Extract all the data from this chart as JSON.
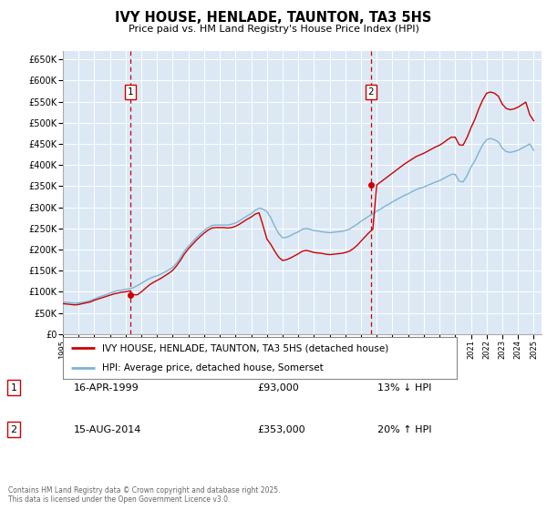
{
  "title": "IVY HOUSE, HENLADE, TAUNTON, TA3 5HS",
  "subtitle": "Price paid vs. HM Land Registry's House Price Index (HPI)",
  "background_color": "#ffffff",
  "plot_background_color": "#dce9f5",
  "grid_color": "#ffffff",
  "legend_label_red": "IVY HOUSE, HENLADE, TAUNTON, TA3 5HS (detached house)",
  "legend_label_blue": "HPI: Average price, detached house, Somerset",
  "annotation_footer": "Contains HM Land Registry data © Crown copyright and database right 2025.\nThis data is licensed under the Open Government Licence v3.0.",
  "sale1_date": "16-APR-1999",
  "sale1_price": "£93,000",
  "sale1_hpi": "13% ↓ HPI",
  "sale1_year": 1999.29,
  "sale1_value": 93000,
  "sale2_date": "15-AUG-2014",
  "sale2_price": "£353,000",
  "sale2_hpi": "20% ↑ HPI",
  "sale2_year": 2014.62,
  "sale2_value": 353000,
  "ylim": [
    0,
    670000
  ],
  "xlim_start": 1995.0,
  "xlim_end": 2025.5,
  "red_color": "#cc0000",
  "blue_color": "#7fb3d3",
  "hpi_data_x": [
    1995.0,
    1995.25,
    1995.5,
    1995.75,
    1996.0,
    1996.25,
    1996.5,
    1996.75,
    1997.0,
    1997.25,
    1997.5,
    1997.75,
    1998.0,
    1998.25,
    1998.5,
    1998.75,
    1999.0,
    1999.25,
    1999.5,
    1999.75,
    2000.0,
    2000.25,
    2000.5,
    2000.75,
    2001.0,
    2001.25,
    2001.5,
    2001.75,
    2002.0,
    2002.25,
    2002.5,
    2002.75,
    2003.0,
    2003.25,
    2003.5,
    2003.75,
    2004.0,
    2004.25,
    2004.5,
    2004.75,
    2005.0,
    2005.25,
    2005.5,
    2005.75,
    2006.0,
    2006.25,
    2006.5,
    2006.75,
    2007.0,
    2007.25,
    2007.5,
    2007.75,
    2008.0,
    2008.25,
    2008.5,
    2008.75,
    2009.0,
    2009.25,
    2009.5,
    2009.75,
    2010.0,
    2010.25,
    2010.5,
    2010.75,
    2011.0,
    2011.25,
    2011.5,
    2011.75,
    2012.0,
    2012.25,
    2012.5,
    2012.75,
    2013.0,
    2013.25,
    2013.5,
    2013.75,
    2014.0,
    2014.25,
    2014.5,
    2014.75,
    2015.0,
    2015.25,
    2015.5,
    2015.75,
    2016.0,
    2016.25,
    2016.5,
    2016.75,
    2017.0,
    2017.25,
    2017.5,
    2017.75,
    2018.0,
    2018.25,
    2018.5,
    2018.75,
    2019.0,
    2019.25,
    2019.5,
    2019.75,
    2020.0,
    2020.25,
    2020.5,
    2020.75,
    2021.0,
    2021.25,
    2021.5,
    2021.75,
    2022.0,
    2022.25,
    2022.5,
    2022.75,
    2023.0,
    2023.25,
    2023.5,
    2023.75,
    2024.0,
    2024.25,
    2024.5,
    2024.75,
    2025.0
  ],
  "hpi_data_y": [
    76000,
    75000,
    74000,
    73000,
    74000,
    75000,
    77000,
    79000,
    83000,
    87000,
    90000,
    93000,
    97000,
    100000,
    103000,
    104000,
    106000,
    107000,
    110000,
    115000,
    120000,
    126000,
    131000,
    135000,
    138000,
    142000,
    147000,
    152000,
    158000,
    168000,
    182000,
    197000,
    208000,
    218000,
    228000,
    237000,
    245000,
    252000,
    257000,
    258000,
    258000,
    258000,
    258000,
    260000,
    263000,
    268000,
    274000,
    280000,
    285000,
    293000,
    298000,
    296000,
    290000,
    275000,
    255000,
    238000,
    228000,
    229000,
    233000,
    238000,
    242000,
    248000,
    250000,
    248000,
    245000,
    244000,
    242000,
    241000,
    240000,
    241000,
    242000,
    243000,
    245000,
    248000,
    254000,
    260000,
    267000,
    273000,
    279000,
    285000,
    291000,
    296000,
    302000,
    307000,
    313000,
    318000,
    323000,
    328000,
    332000,
    337000,
    342000,
    345000,
    348000,
    352000,
    356000,
    360000,
    363000,
    368000,
    373000,
    378000,
    378000,
    362000,
    360000,
    375000,
    395000,
    410000,
    430000,
    448000,
    460000,
    463000,
    460000,
    455000,
    440000,
    432000,
    430000,
    432000,
    435000,
    440000,
    445000,
    450000,
    435000
  ],
  "red_data_x": [
    1995.0,
    1995.25,
    1995.5,
    1995.75,
    1996.0,
    1996.25,
    1996.5,
    1996.75,
    1997.0,
    1997.25,
    1997.5,
    1997.75,
    1998.0,
    1998.25,
    1998.5,
    1998.75,
    1999.0,
    1999.25,
    1999.5,
    1999.75,
    2000.0,
    2000.25,
    2000.5,
    2000.75,
    2001.0,
    2001.25,
    2001.5,
    2001.75,
    2002.0,
    2002.25,
    2002.5,
    2002.75,
    2003.0,
    2003.25,
    2003.5,
    2003.75,
    2004.0,
    2004.25,
    2004.5,
    2004.75,
    2005.0,
    2005.25,
    2005.5,
    2005.75,
    2006.0,
    2006.25,
    2006.5,
    2006.75,
    2007.0,
    2007.25,
    2007.5,
    2007.75,
    2008.0,
    2008.25,
    2008.5,
    2008.75,
    2009.0,
    2009.25,
    2009.5,
    2009.75,
    2010.0,
    2010.25,
    2010.5,
    2010.75,
    2011.0,
    2011.25,
    2011.5,
    2011.75,
    2012.0,
    2012.25,
    2012.5,
    2012.75,
    2013.0,
    2013.25,
    2013.5,
    2013.75,
    2014.0,
    2014.25,
    2014.5,
    2014.75,
    2015.0,
    2015.25,
    2015.5,
    2015.75,
    2016.0,
    2016.25,
    2016.5,
    2016.75,
    2017.0,
    2017.25,
    2017.5,
    2017.75,
    2018.0,
    2018.25,
    2018.5,
    2018.75,
    2019.0,
    2019.25,
    2019.5,
    2019.75,
    2020.0,
    2020.25,
    2020.5,
    2020.75,
    2021.0,
    2021.25,
    2021.5,
    2021.75,
    2022.0,
    2022.25,
    2022.5,
    2022.75,
    2023.0,
    2023.25,
    2023.5,
    2023.75,
    2024.0,
    2024.25,
    2024.5,
    2024.75,
    2025.0
  ],
  "red_data_y": [
    72000,
    71000,
    70000,
    69000,
    70000,
    72000,
    74000,
    76000,
    80000,
    83000,
    86000,
    89000,
    92000,
    95000,
    97000,
    99000,
    100000,
    102000,
    93000,
    93000,
    100000,
    108000,
    116000,
    122000,
    127000,
    132000,
    138000,
    144000,
    151000,
    162000,
    175000,
    190000,
    202000,
    212000,
    222000,
    231000,
    239000,
    246000,
    251000,
    252000,
    252000,
    252000,
    251000,
    252000,
    255000,
    260000,
    266000,
    272000,
    277000,
    284000,
    287000,
    257000,
    225000,
    212000,
    196000,
    182000,
    174000,
    176000,
    180000,
    185000,
    190000,
    196000,
    198000,
    196000,
    193000,
    192000,
    191000,
    189000,
    188000,
    189000,
    190000,
    191000,
    193000,
    196000,
    202000,
    210000,
    220000,
    230000,
    240000,
    248000,
    353000,
    360000,
    367000,
    374000,
    381000,
    388000,
    395000,
    402000,
    408000,
    414000,
    420000,
    424000,
    428000,
    433000,
    438000,
    443000,
    447000,
    453000,
    460000,
    466000,
    466000,
    448000,
    447000,
    465000,
    488000,
    508000,
    533000,
    554000,
    570000,
    573000,
    570000,
    563000,
    544000,
    534000,
    531000,
    533000,
    537000,
    543000,
    549000,
    519000,
    505000
  ],
  "yticks": [
    0,
    50000,
    100000,
    150000,
    200000,
    250000,
    300000,
    350000,
    400000,
    450000,
    500000,
    550000,
    600000,
    650000
  ],
  "ytick_labels": [
    "£0",
    "£50K",
    "£100K",
    "£150K",
    "£200K",
    "£250K",
    "£300K",
    "£350K",
    "£400K",
    "£450K",
    "£500K",
    "£550K",
    "£600K",
    "£650K"
  ]
}
